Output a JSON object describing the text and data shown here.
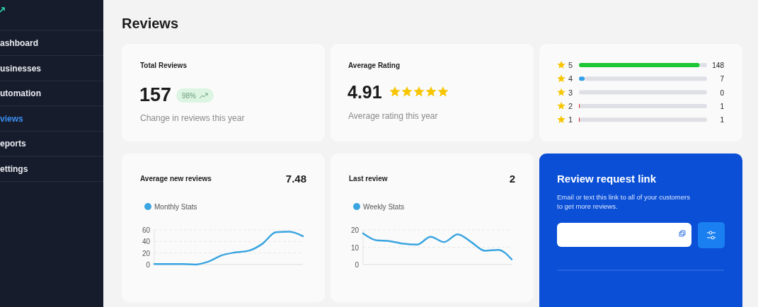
{
  "chart_data": [
    {
      "type": "other",
      "title": "Reviews",
      "annotations": [
        "ashboard",
        "usinesses",
        "utomation",
        "views",
        "eports",
        "ettings"
      ]
    },
    {
      "type": "other",
      "title": "Total Reviews",
      "annotations": [
        "157",
        "98%",
        "Change in reviews this year"
      ]
    },
    {
      "type": "other",
      "title": "Average Rating",
      "annotations": [
        "4.91",
        "Average rating this year"
      ]
    },
    {
      "type": "bar",
      "orientation": "horizontal",
      "categories": [
        "5",
        "4",
        "3",
        "2",
        "1"
      ],
      "values": [
        148,
        7,
        0,
        1,
        1
      ],
      "colors": [
        "#1dc635",
        "#35a0e8",
        "#d43c3c",
        "#d43c3c",
        "#d43c3c"
      ],
      "data_labels": true
    },
    {
      "type": "line",
      "title": "Average new reviews",
      "annotations": [
        "7.48"
      ],
      "categories": [
        null,
        null,
        null,
        null,
        null,
        null,
        null,
        null,
        null,
        null,
        null,
        null
      ],
      "series": [
        {
          "name": "Monthly Stats",
          "color": "#3aa5e0",
          "values": [
            1,
            1,
            1,
            0,
            5,
            16,
            21,
            24,
            36,
            56,
            57,
            49
          ]
        }
      ],
      "ylim": [
        0,
        60
      ],
      "yticks": [
        0,
        20,
        40,
        60
      ],
      "grid": "y",
      "legend": "top left",
      "marker": "none"
    },
    {
      "type": "line",
      "title": "Last review",
      "annotations": [
        "2"
      ],
      "categories": [
        null,
        null,
        null,
        null,
        null,
        null,
        null,
        null,
        null,
        null,
        null,
        null
      ],
      "series": [
        {
          "name": "Weekly Stats",
          "color": "#3aa5e0",
          "values": [
            18,
            14,
            13.5,
            12,
            11.5,
            16,
            13,
            17.5,
            13,
            8,
            8.5,
            3
          ]
        }
      ],
      "ylim": [
        0,
        20
      ],
      "yticks": [
        0,
        10,
        20
      ],
      "grid": "y",
      "legend": "top left",
      "marker": "none"
    },
    {
      "type": "other",
      "title": "Review request link",
      "annotations": [
        "Email or text this link to all of your customers to get more reviews."
      ]
    }
  ]
}
